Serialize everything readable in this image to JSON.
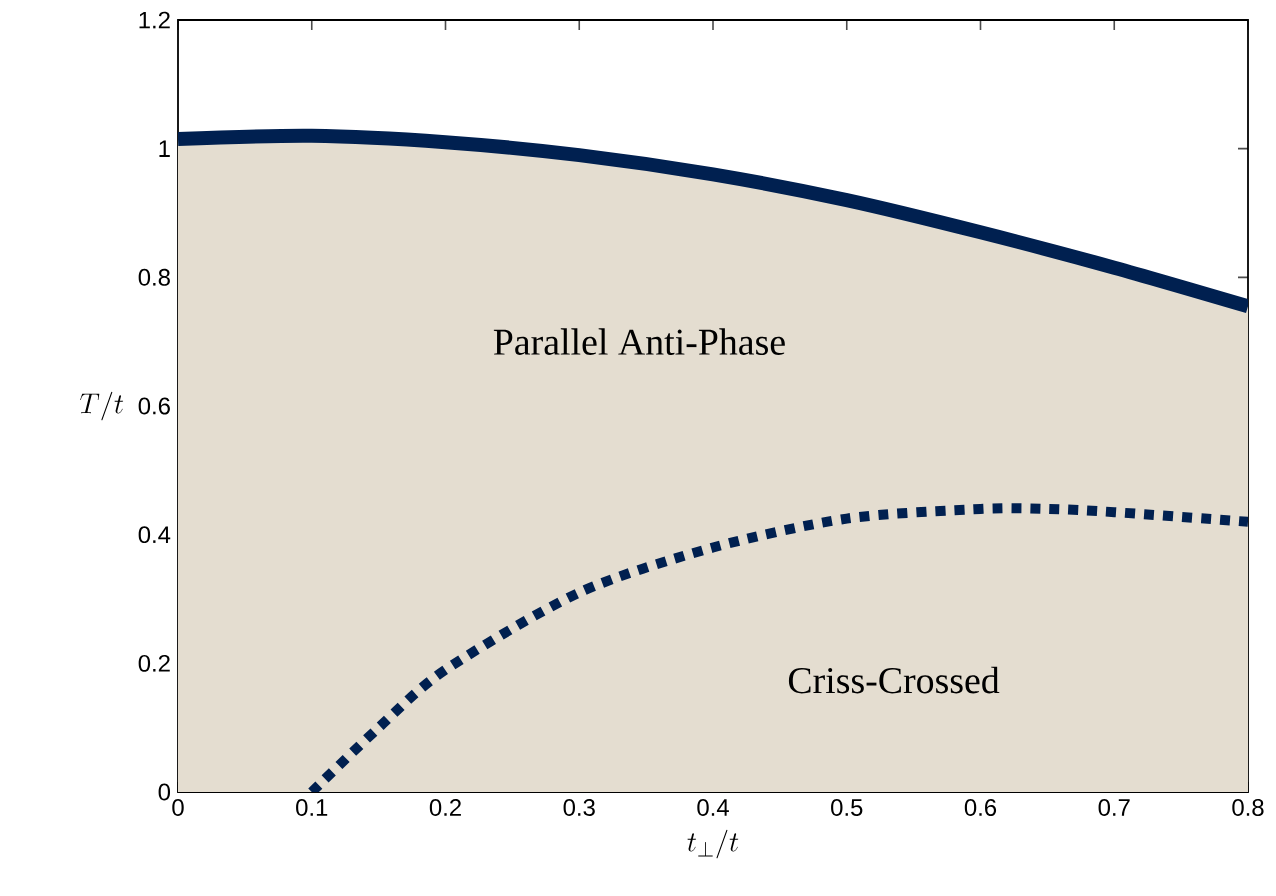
{
  "chart_data": {
    "type": "line",
    "xlabel": "t_\\perp/t",
    "ylabel": "T/t",
    "xlim": [
      0,
      0.8
    ],
    "ylim": [
      0,
      1.2
    ],
    "xticks": [
      0,
      0.1,
      0.2,
      0.3,
      0.4,
      0.5,
      0.6,
      0.7,
      0.8
    ],
    "yticks": [
      0,
      0.2,
      0.4,
      0.6,
      0.8,
      1,
      1.2
    ],
    "annotations": [
      "Parallel Anti-Phase",
      "Criss-Crossed"
    ],
    "series": [
      {
        "type": "area",
        "color": "#002050",
        "line_style": "solid",
        "x": [
          0,
          0.1,
          0.2,
          0.3,
          0.4,
          0.5,
          0.6,
          0.7,
          0.8
        ],
        "values": [
          1.015,
          1.02,
          1.01,
          0.99,
          0.96,
          0.92,
          0.87,
          0.815,
          0.755
        ]
      },
      {
        "color": "#002050",
        "line_style": "dashed",
        "x": [
          0.1,
          0.15,
          0.2,
          0.3,
          0.4,
          0.5,
          0.6,
          0.65,
          0.7,
          0.8
        ],
        "values": [
          0,
          0.1,
          0.19,
          0.31,
          0.38,
          0.425,
          0.44,
          0.44,
          0.435,
          0.42
        ]
      }
    ]
  }
}
